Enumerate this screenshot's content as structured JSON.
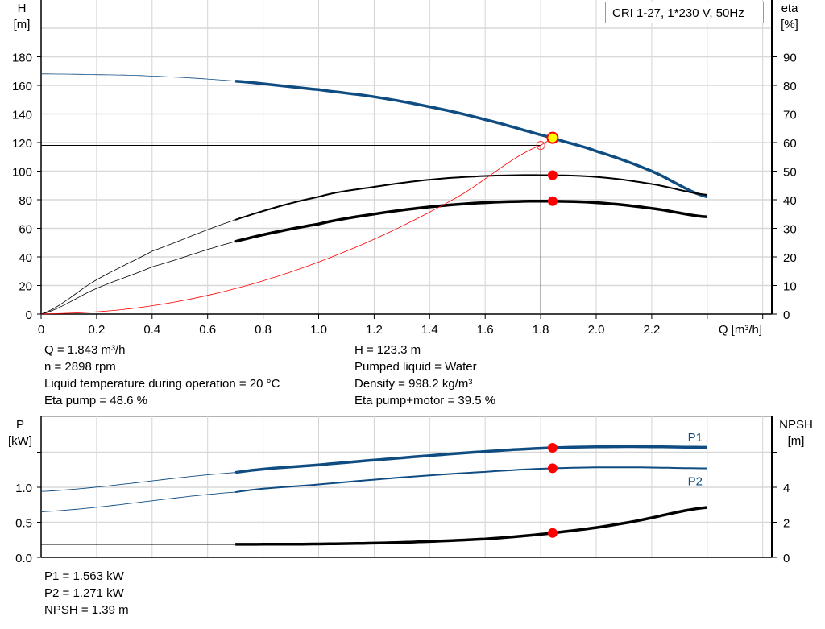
{
  "chart_data": [
    {
      "type": "line",
      "title": "CRI 1-27, 1*230 V, 50Hz",
      "xlabel": "Q [m³/h]",
      "ylabel_left": [
        "H",
        "[m]"
      ],
      "ylabel_right": [
        "eta",
        "[%]"
      ],
      "xlim": [
        0,
        2.6
      ],
      "ylim_left": [
        0,
        220
      ],
      "ylim_right": [
        0,
        110
      ],
      "x_ticks": [
        "0",
        "0.2",
        "0.4",
        "0.6",
        "0.8",
        "1.0",
        "1.2",
        "1.4",
        "1.6",
        "1.8",
        "2.0",
        "2.2"
      ],
      "y_ticks_left": [
        "0",
        "20",
        "40",
        "60",
        "80",
        "100",
        "120",
        "140",
        "160",
        "180"
      ],
      "y_ticks_right": [
        "0",
        "10",
        "20",
        "30",
        "40",
        "50",
        "60",
        "70",
        "80",
        "90"
      ],
      "grid": true,
      "series": [
        {
          "key": "H",
          "axis": "left",
          "color": "#0f4c81",
          "x": [
            0,
            0.2,
            0.4,
            0.7,
            1.0,
            1.2,
            1.4,
            1.6,
            1.843,
            2.0,
            2.2,
            2.4
          ],
          "y": [
            168,
            167.5,
            166.5,
            163,
            157,
            152,
            145,
            136,
            123.3,
            114,
            100,
            82
          ]
        },
        {
          "key": "eta_pump",
          "axis": "right",
          "color": "#000000",
          "x": [
            0,
            0.2,
            0.4,
            0.7,
            1.0,
            1.2,
            1.4,
            1.6,
            1.8,
            2.0,
            2.2,
            2.4
          ],
          "y": [
            0,
            12,
            22,
            33,
            41,
            44.5,
            47,
            48.3,
            48.6,
            48,
            45.5,
            41.7
          ]
        },
        {
          "key": "eta_pump_motor",
          "axis": "right",
          "color": "#000000",
          "x": [
            0,
            0.2,
            0.4,
            0.7,
            1.0,
            1.2,
            1.4,
            1.6,
            1.8,
            2.0,
            2.2,
            2.4
          ],
          "y": [
            0,
            9,
            16.5,
            25.4,
            31.5,
            35,
            37.5,
            39,
            39.5,
            39,
            37,
            34
          ]
        },
        {
          "key": "system_curve",
          "axis": "left",
          "color": "#ff0000",
          "x": [
            0,
            0.3,
            0.6,
            0.9,
            1.2,
            1.5,
            1.8,
            1.843
          ],
          "y": [
            0,
            3.3,
            13.1,
            29.5,
            52.4,
            81.9,
            118,
            123.3
          ]
        }
      ],
      "reference_lines": {
        "H": 118,
        "Q": 1.8
      },
      "operating_points": {
        "Q": 1.843,
        "H": 123.3,
        "eta_pump": 48.6,
        "eta_pump_motor": 39.5
      }
    },
    {
      "type": "line",
      "xlim": [
        0,
        2.6
      ],
      "ylabel_left": [
        "P",
        "[kW]"
      ],
      "ylabel_right": [
        "NPSH",
        "[m]"
      ],
      "ylim_left": [
        0,
        2.0
      ],
      "ylim_right": [
        0,
        8
      ],
      "y_ticks_left": [
        "0.0",
        "0.5",
        "1.0"
      ],
      "y_ticks_right": [
        "0",
        "2",
        "4"
      ],
      "grid": true,
      "series": [
        {
          "key": "P1",
          "name": "P1",
          "axis": "left",
          "color": "#0f4c81",
          "x": [
            0,
            0.7,
            1.0,
            1.3,
            1.6,
            1.843,
            2.1,
            2.4
          ],
          "y": [
            0.94,
            1.21,
            1.32,
            1.42,
            1.51,
            1.563,
            1.58,
            1.57
          ]
        },
        {
          "key": "P2",
          "name": "P2",
          "axis": "left",
          "color": "#0f4c81",
          "x": [
            0,
            0.7,
            1.0,
            1.3,
            1.6,
            1.843,
            2.1,
            2.4
          ],
          "y": [
            0.65,
            0.93,
            1.04,
            1.14,
            1.22,
            1.271,
            1.285,
            1.27
          ]
        },
        {
          "key": "NPSH",
          "axis": "right",
          "color": "#000000",
          "x": [
            0,
            0.7,
            1.0,
            1.3,
            1.6,
            1.843,
            2.1,
            2.4
          ],
          "y": [
            0.74,
            0.74,
            0.76,
            0.85,
            1.05,
            1.39,
            1.95,
            2.85
          ]
        }
      ],
      "operating_points": {
        "Q": 1.843,
        "P1": 1.563,
        "P2": 1.271,
        "NPSH": 1.39
      }
    }
  ],
  "info_top_left": [
    "Q = 1.843 m³/h",
    "n = 2898 rpm",
    "Liquid temperature during operation = 20 °C",
    "Eta pump = 48.6 %"
  ],
  "info_top_right": [
    "H = 123.3 m",
    "Pumped liquid = Water",
    "Density = 998.2 kg/m³",
    "Eta pump+motor = 39.5 %"
  ],
  "info_bottom": [
    "P1 = 1.563 kW",
    "P2 = 1.271 kW",
    "NPSH = 1.39 m"
  ]
}
